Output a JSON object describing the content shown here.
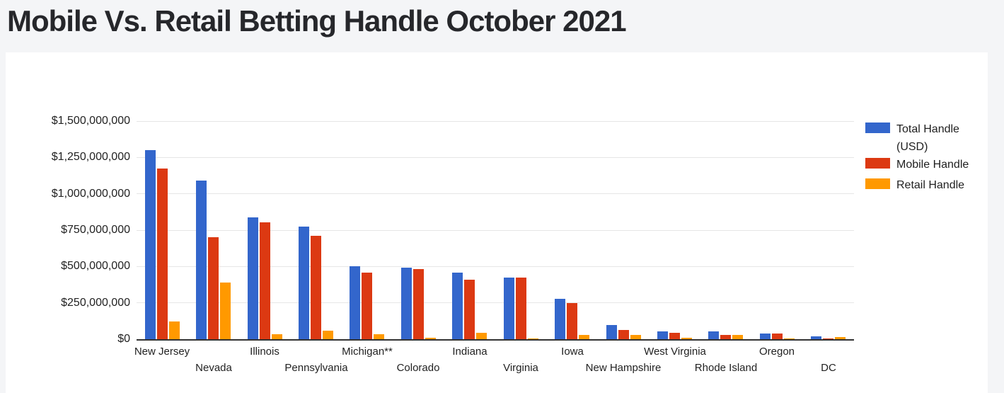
{
  "page": {
    "title": "Mobile Vs. Retail Betting Handle October 2021"
  },
  "colors": {
    "page_background": "#f4f5f7",
    "card_background": "#ffffff",
    "title_text": "#26272b",
    "axis_text": "#222222",
    "gridline": "#e6e6e6",
    "axis_baseline": "#333333",
    "series_blue": "#3366cc",
    "series_red": "#dc3912",
    "series_orange": "#ff9900"
  },
  "chart_data": {
    "type": "bar",
    "title": "Mobile Vs. Retail Betting Handle October 2021",
    "xlabel": "",
    "ylabel": "",
    "grid": true,
    "legend_position": "right",
    "ylim": [
      0,
      1500000000
    ],
    "ytick_step": 250000000,
    "yticks": [
      "$0",
      "$250,000,000",
      "$500,000,000",
      "$750,000,000",
      "$1,000,000,000",
      "$1,250,000,000",
      "$1,500,000,000"
    ],
    "categories": [
      "New Jersey",
      "Nevada",
      "Illinois",
      "Pennsylvania",
      "Michigan**",
      "Colorado",
      "Indiana",
      "Virginia",
      "Iowa",
      "New Hampshire",
      "West Virginia",
      "Rhode Island",
      "Oregon",
      "DC"
    ],
    "series": [
      {
        "name": "Total Handle (USD)",
        "color": "#3366cc",
        "values": [
          1300000000,
          1090000000,
          840000000,
          775000000,
          500000000,
          490000000,
          460000000,
          425000000,
          278000000,
          95000000,
          56000000,
          55000000,
          38000000,
          20000000
        ]
      },
      {
        "name": "Mobile Handle",
        "color": "#dc3912",
        "values": [
          1175000000,
          700000000,
          803000000,
          712000000,
          460000000,
          480000000,
          408000000,
          422000000,
          250000000,
          64000000,
          45000000,
          27000000,
          37000000,
          3000000
        ]
      },
      {
        "name": "Retail Handle",
        "color": "#ff9900",
        "values": [
          120000000,
          390000000,
          36000000,
          60000000,
          35000000,
          8000000,
          45000000,
          3000000,
          28000000,
          30000000,
          11000000,
          28000000,
          2000000,
          17000000
        ]
      }
    ]
  }
}
